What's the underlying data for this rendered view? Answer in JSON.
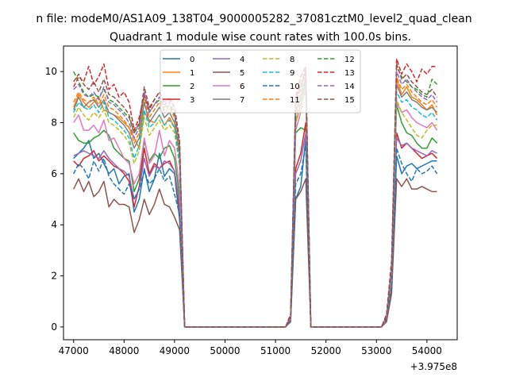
{
  "header": {
    "suptitle": "n file: modeM0/AS1A09_138T04_9000005282_37081cztM0_level2_quad_clean",
    "title": "Quadrant 1 module wise count rates with 100.0s bins."
  },
  "chart_data": {
    "type": "line",
    "title": "Quadrant 1 module wise count rates with 100.0s bins.",
    "xlabel": "",
    "ylabel": "",
    "x_offset_label": "+3.975e8",
    "xlim": [
      46800,
      54600
    ],
    "ylim": [
      -0.5,
      11.0
    ],
    "xticks": [
      47000,
      48000,
      49000,
      50000,
      51000,
      52000,
      53000,
      54000
    ],
    "xtick_labels": [
      "47000",
      "48000",
      "49000",
      "50000",
      "51000",
      "52000",
      "53000",
      "54000"
    ],
    "yticks": [
      0,
      2,
      4,
      6,
      8,
      10
    ],
    "ytick_labels": [
      "0",
      "2",
      "4",
      "6",
      "8",
      "10"
    ],
    "legend_location": "upper center",
    "segments": [
      {
        "x_start": 47000,
        "x_end": 49100,
        "step": 100,
        "n": 22
      },
      {
        "x_start": 49200,
        "x_end": 51200,
        "step": 100,
        "n": 21,
        "value": 0
      },
      {
        "x_start": 51300,
        "x_end": 51700,
        "step": 100,
        "n": 5
      },
      {
        "x_start": 51800,
        "x_end": 53100,
        "step": 100,
        "n": 14,
        "value": 0
      },
      {
        "x_start": 53200,
        "x_end": 54200,
        "step": 100,
        "n": 11
      }
    ],
    "series": [
      {
        "name": "0",
        "color": "#1f77b4",
        "dash": "solid",
        "s1": [
          6.6,
          6.8,
          7.0,
          7.3,
          6.6,
          6.8,
          6.4,
          6.0,
          6.2,
          5.6,
          5.9,
          6.0,
          4.5,
          5.0,
          6.2,
          5.3,
          5.8,
          6.8,
          5.9,
          6.2,
          6.0,
          4.2
        ],
        "s3": [
          0.3,
          5.0,
          5.5,
          7.4,
          0.0
        ],
        "s5": [
          0.3,
          1.5,
          6.7,
          6.0,
          6.3,
          6.4,
          6.2,
          6.3,
          6.4,
          6.5,
          6.5
        ]
      },
      {
        "name": "1",
        "color": "#ff7f0e",
        "dash": "solid",
        "s1": [
          8.6,
          9.1,
          8.8,
          8.6,
          8.8,
          9.0,
          8.5,
          8.4,
          8.3,
          8.2,
          8.0,
          7.8,
          7.4,
          7.0,
          8.4,
          8.1,
          8.0,
          8.3,
          7.9,
          8.2,
          7.8,
          6.9
        ],
        "s3": [
          0.4,
          8.0,
          8.7,
          9.8,
          0.0
        ],
        "s5": [
          0.4,
          2.0,
          9.7,
          9.1,
          9.4,
          9.0,
          8.9,
          8.7,
          8.5,
          8.7,
          8.3
        ]
      },
      {
        "name": "2",
        "color": "#2ca02c",
        "dash": "solid",
        "s1": [
          7.6,
          7.3,
          7.2,
          7.2,
          7.4,
          7.5,
          7.7,
          7.5,
          7.0,
          6.8,
          6.6,
          6.5,
          5.3,
          5.8,
          7.3,
          6.5,
          6.8,
          6.6,
          7.0,
          7.1,
          6.6,
          5.1
        ],
        "s3": [
          0.3,
          7.6,
          7.8,
          7.7,
          0.0
        ],
        "s5": [
          0.3,
          2.1,
          8.7,
          8.0,
          7.6,
          7.5,
          7.2,
          7.0,
          7.0,
          7.4,
          7.2
        ]
      },
      {
        "name": "3",
        "color": "#d62728",
        "dash": "solid",
        "s1": [
          6.5,
          6.3,
          6.6,
          6.7,
          6.9,
          6.5,
          6.7,
          6.5,
          6.3,
          6.2,
          6.0,
          5.7,
          4.7,
          5.5,
          7.0,
          6.0,
          6.4,
          6.2,
          6.4,
          6.5,
          6.1,
          4.6
        ],
        "s3": [
          0.3,
          6.2,
          6.8,
          8.0,
          0.0
        ],
        "s5": [
          0.3,
          1.6,
          7.6,
          7.0,
          7.2,
          7.0,
          6.8,
          6.6,
          6.7,
          6.8,
          6.6
        ]
      },
      {
        "name": "4",
        "color": "#9467bd",
        "dash": "solid",
        "s1": [
          6.7,
          6.8,
          6.9,
          6.8,
          6.7,
          6.6,
          6.9,
          6.6,
          6.4,
          6.2,
          6.1,
          5.9,
          5.0,
          5.4,
          6.6,
          5.9,
          6.3,
          6.2,
          6.5,
          6.4,
          6.1,
          4.8
        ],
        "s3": [
          0.3,
          6.0,
          6.5,
          7.6,
          0.0
        ],
        "s5": [
          0.3,
          1.7,
          7.4,
          7.1,
          7.2,
          7.0,
          6.9,
          6.8,
          6.7,
          6.9,
          6.8
        ]
      },
      {
        "name": "5",
        "color": "#8c564b",
        "dash": "solid",
        "s1": [
          5.4,
          5.8,
          5.3,
          5.7,
          5.1,
          5.3,
          5.7,
          4.7,
          5.0,
          4.8,
          4.8,
          4.7,
          3.7,
          4.2,
          5.0,
          4.4,
          4.8,
          5.4,
          4.8,
          4.7,
          4.3,
          3.8
        ],
        "s3": [
          0.2,
          5.0,
          5.3,
          5.8,
          0.0
        ],
        "s5": [
          0.2,
          1.3,
          5.8,
          5.5,
          5.8,
          5.4,
          5.4,
          5.5,
          5.4,
          5.3,
          5.3
        ]
      },
      {
        "name": "6",
        "color": "#e377c2",
        "dash": "solid",
        "s1": [
          8.0,
          8.3,
          7.7,
          7.7,
          7.9,
          7.6,
          8.1,
          7.3,
          7.4,
          7.0,
          6.6,
          6.4,
          5.6,
          6.0,
          7.4,
          6.4,
          6.7,
          7.7,
          6.7,
          7.3,
          7.0,
          5.5
        ],
        "s3": [
          0.3,
          7.7,
          8.4,
          9.5,
          0.0
        ],
        "s5": [
          0.3,
          1.9,
          8.8,
          8.4,
          8.5,
          8.2,
          8.0,
          7.9,
          7.8,
          8.0,
          7.7
        ]
      },
      {
        "name": "7",
        "color": "#7f7f7f",
        "dash": "solid",
        "s1": [
          8.5,
          9.0,
          8.6,
          8.8,
          8.9,
          8.6,
          8.9,
          8.4,
          8.3,
          8.1,
          7.9,
          7.6,
          7.0,
          7.4,
          8.8,
          8.0,
          8.3,
          8.6,
          8.2,
          8.4,
          8.0,
          6.7
        ],
        "s3": [
          0.4,
          8.4,
          9.0,
          9.7,
          0.0
        ],
        "s5": [
          0.4,
          2.2,
          9.5,
          9.0,
          9.2,
          8.9,
          8.8,
          8.6,
          8.5,
          8.6,
          8.4
        ]
      },
      {
        "name": "8",
        "color": "#bcbd22",
        "dash": "dashed",
        "s1": [
          8.2,
          8.6,
          8.3,
          8.1,
          8.4,
          8.2,
          8.5,
          8.0,
          7.9,
          7.7,
          7.5,
          7.2,
          6.4,
          6.9,
          8.2,
          7.5,
          7.8,
          8.1,
          7.7,
          7.9,
          7.6,
          6.3
        ],
        "s3": [
          0.4,
          8.0,
          8.6,
          9.3,
          0.0
        ],
        "s5": [
          0.4,
          2.0,
          8.9,
          8.4,
          8.1,
          7.8,
          7.5,
          7.4,
          7.7,
          7.9,
          7.9
        ]
      },
      {
        "name": "9",
        "color": "#17becf",
        "dash": "dashed",
        "s1": [
          8.4,
          8.8,
          8.6,
          8.5,
          8.7,
          8.4,
          8.8,
          8.2,
          8.1,
          7.9,
          7.7,
          7.4,
          6.6,
          7.1,
          8.5,
          7.8,
          8.0,
          8.3,
          7.9,
          8.1,
          7.8,
          6.4
        ],
        "s3": [
          0.4,
          8.2,
          8.8,
          9.5,
          0.0
        ],
        "s5": [
          0.4,
          2.1,
          9.2,
          8.8,
          8.9,
          8.6,
          8.5,
          8.3,
          8.2,
          8.4,
          8.1
        ]
      },
      {
        "name": "10",
        "color": "#1f77b4",
        "dash": "dashed",
        "s1": [
          6.0,
          6.4,
          6.2,
          5.8,
          6.5,
          6.1,
          6.6,
          5.9,
          5.6,
          5.4,
          5.2,
          5.6,
          5.0,
          5.4,
          6.1,
          5.6,
          5.8,
          6.2,
          5.7,
          5.9,
          5.2,
          4.4
        ],
        "s3": [
          0.3,
          5.6,
          6.0,
          7.1,
          0.0
        ],
        "s5": [
          0.3,
          1.6,
          7.0,
          6.4,
          6.0,
          5.7,
          6.2,
          6.0,
          6.1,
          6.3,
          6.0
        ]
      },
      {
        "name": "11",
        "color": "#ff7f0e",
        "dash": "dashed",
        "s1": [
          8.8,
          9.2,
          8.9,
          8.8,
          9.0,
          8.7,
          9.1,
          8.6,
          8.5,
          8.3,
          8.1,
          7.8,
          7.2,
          7.6,
          9.0,
          8.2,
          8.5,
          8.8,
          8.4,
          8.6,
          8.2,
          6.9
        ],
        "s3": [
          0.4,
          8.6,
          9.2,
          9.9,
          0.0
        ],
        "s5": [
          0.4,
          2.2,
          9.8,
          9.3,
          9.5,
          9.2,
          9.0,
          8.8,
          8.7,
          8.9,
          8.6
        ]
      },
      {
        "name": "12",
        "color": "#2ca02c",
        "dash": "dashed",
        "s1": [
          10.0,
          9.6,
          9.2,
          9.0,
          9.1,
          9.0,
          9.3,
          8.9,
          8.8,
          8.6,
          8.4,
          8.2,
          7.6,
          7.9,
          9.1,
          8.4,
          8.7,
          8.9,
          8.5,
          8.7,
          8.3,
          7.0
        ],
        "s3": [
          0.4,
          8.8,
          9.4,
          10.0,
          0.0
        ],
        "s5": [
          0.4,
          2.3,
          10.2,
          9.8,
          9.6,
          9.4,
          9.3,
          9.1,
          9.0,
          9.7,
          9.5
        ]
      },
      {
        "name": "13",
        "color": "#d62728",
        "dash": "dashed",
        "s1": [
          9.4,
          9.8,
          9.6,
          10.2,
          9.5,
          9.8,
          10.3,
          9.3,
          9.5,
          9.0,
          9.2,
          8.8,
          7.7,
          8.2,
          9.1,
          8.5,
          8.9,
          9.2,
          8.7,
          8.9,
          8.6,
          7.3
        ],
        "s3": [
          0.5,
          9.0,
          9.8,
          10.2,
          0.0
        ],
        "s5": [
          0.5,
          2.6,
          10.5,
          9.9,
          10.3,
          10.0,
          9.6,
          10.1,
          9.9,
          10.2,
          10.2
        ]
      },
      {
        "name": "14",
        "color": "#9467bd",
        "dash": "dashed",
        "s1": [
          9.3,
          9.5,
          9.1,
          9.0,
          9.2,
          8.9,
          9.4,
          8.8,
          8.7,
          8.5,
          8.3,
          8.0,
          7.4,
          7.8,
          9.2,
          8.4,
          8.7,
          9.0,
          8.6,
          8.8,
          8.4,
          7.1
        ],
        "s3": [
          0.4,
          8.8,
          9.3,
          10.0,
          0.0
        ],
        "s5": [
          0.4,
          2.3,
          10.0,
          9.5,
          9.7,
          9.4,
          9.2,
          9.0,
          8.9,
          9.1,
          8.8
        ]
      },
      {
        "name": "15",
        "color": "#8c564b",
        "dash": "dashed",
        "s1": [
          9.6,
          9.9,
          9.5,
          9.3,
          9.6,
          9.2,
          9.7,
          9.1,
          9.0,
          8.8,
          8.6,
          8.3,
          7.6,
          8.0,
          9.4,
          8.6,
          8.9,
          9.2,
          8.8,
          9.0,
          8.6,
          7.2
        ],
        "s3": [
          0.4,
          8.9,
          9.5,
          10.1,
          0.0
        ],
        "s5": [
          0.4,
          2.4,
          10.3,
          9.7,
          9.9,
          9.6,
          9.4,
          9.2,
          9.1,
          9.3,
          9.0
        ]
      }
    ]
  }
}
